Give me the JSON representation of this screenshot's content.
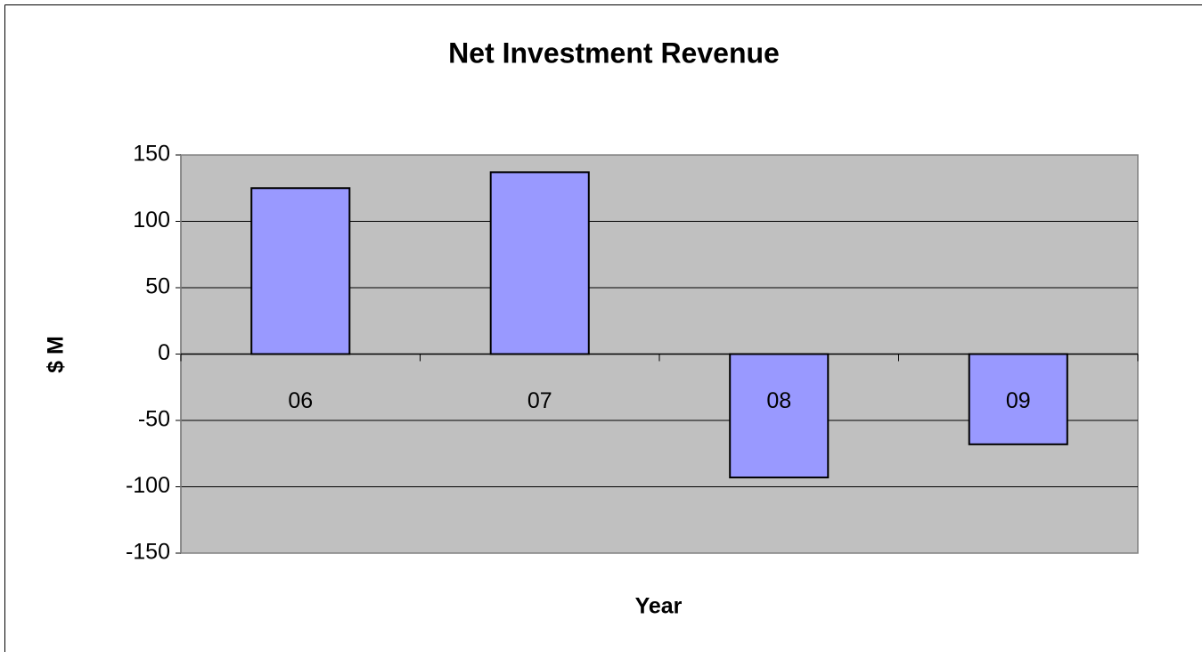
{
  "chart_data": {
    "type": "bar",
    "title": "Net Investment Revenue",
    "x_label": "Year",
    "y_label": "$ M",
    "categories": [
      "06",
      "07",
      "08",
      "09"
    ],
    "values": [
      125,
      137,
      -93,
      -68
    ],
    "color": "#9999ff",
    "ylim": [
      -150,
      150
    ],
    "yticks": [
      -150,
      -100,
      -50,
      0,
      50,
      100,
      150
    ],
    "grid": true
  }
}
